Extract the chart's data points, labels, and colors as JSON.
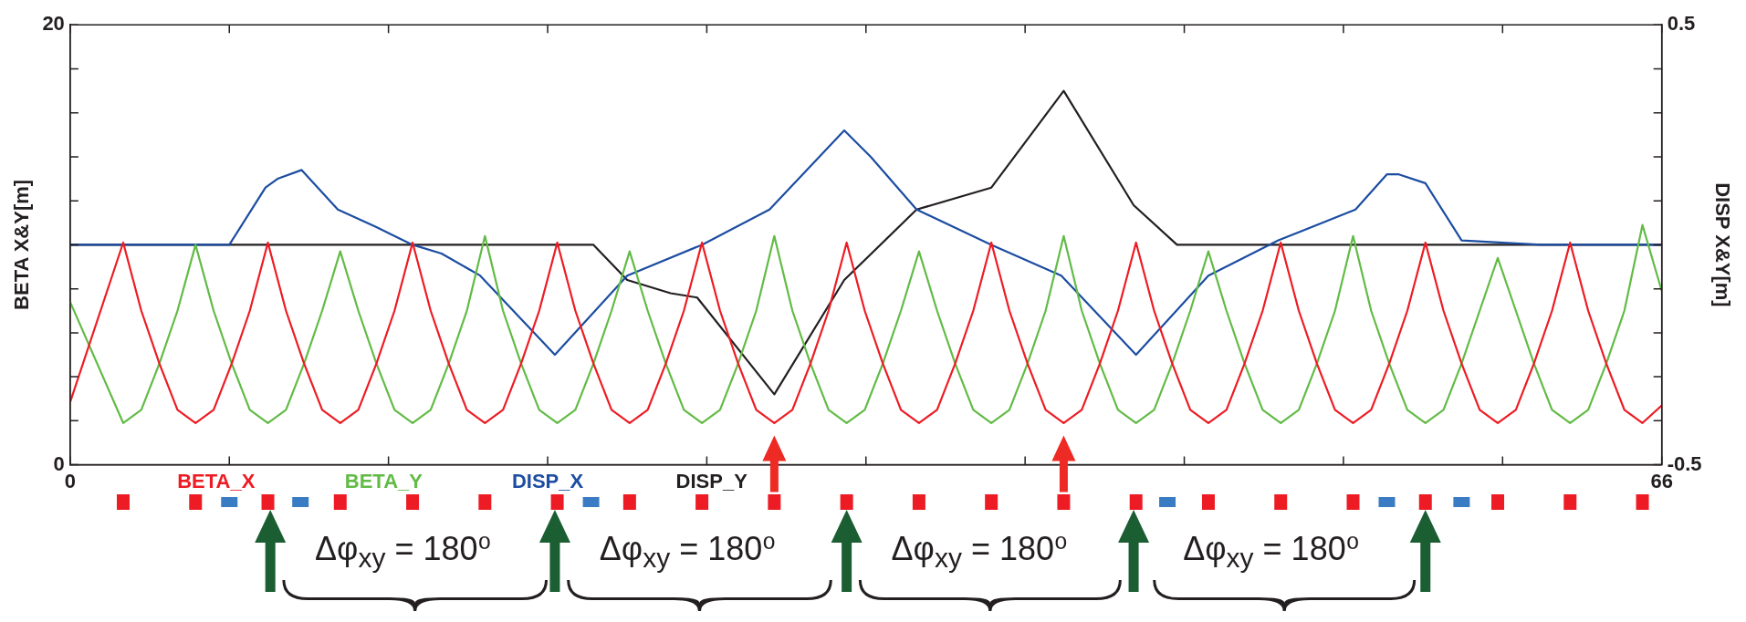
{
  "chart_data": {
    "type": "line",
    "ylabel": "BETA X&Y[m]",
    "y2label": "DISP X&Y[m]",
    "legend": "bottom",
    "xlim": [
      0,
      66
    ],
    "xticks": [
      0,
      {
        "value": 6.6,
        "label": null
      },
      {
        "value": 13.2,
        "label": null
      },
      {
        "value": 19.8,
        "label": null
      },
      {
        "value": 26.4,
        "label": null
      },
      {
        "value": 33,
        "label": null
      },
      {
        "value": 39.6,
        "label": null
      },
      {
        "value": 46.2,
        "label": null
      },
      {
        "value": 52.8,
        "label": null
      },
      {
        "value": 59.4,
        "label": null
      },
      66
    ],
    "ylim": [
      0,
      20
    ],
    "yticks": [
      0,
      {
        "value": 2,
        "label": null
      },
      {
        "value": 4,
        "label": null
      },
      {
        "value": 6,
        "label": null
      },
      {
        "value": 8,
        "label": null
      },
      {
        "value": 10,
        "label": null
      },
      {
        "value": 12,
        "label": null
      },
      {
        "value": 14,
        "label": null
      },
      {
        "value": 16,
        "label": null
      },
      {
        "value": 18,
        "label": null
      },
      20
    ],
    "y2lim": [
      -0.5,
      0.5
    ],
    "y2ticks": [
      -0.5,
      {
        "value": -0.4,
        "label": null
      },
      {
        "value": -0.3,
        "label": null
      },
      {
        "value": -0.2,
        "label": null
      },
      {
        "value": -0.1,
        "label": null
      },
      {
        "value": 0,
        "label": null
      },
      {
        "value": 0.1,
        "label": null
      },
      {
        "value": 0.2,
        "label": null
      },
      {
        "value": 0.3,
        "label": null
      },
      {
        "value": 0.4,
        "label": null
      },
      0.5
    ],
    "annotations": [
      "Δφ$_{xy}$ = 180⁰",
      "Δφ$_{xy}$ = 180⁰",
      "Δφ$_{xy}$ = 180⁰",
      "Δφ$_{xy}$ = 180⁰"
    ],
    "series": [
      {
        "name": "BETA_X",
        "color": "#ed1c24",
        "x": [
          0,
          2.2,
          2.95,
          3.7,
          4.45,
          5.2,
          5.95,
          6.7,
          7.45,
          8.2,
          8.95,
          9.7,
          10.45,
          11.2,
          11.95,
          12.7,
          13.45,
          14.2,
          14.95,
          15.7,
          16.45,
          17.2,
          17.95,
          18.7,
          19.45,
          20.2,
          20.95,
          21.7,
          22.45,
          23.2,
          23.95,
          24.7,
          25.45,
          26.2,
          26.95,
          27.7,
          28.45,
          29.2,
          29.95,
          30.7,
          31.45,
          32.2,
          32.95,
          33.7,
          34.45,
          35.2,
          35.95,
          36.7,
          37.45,
          38.2,
          38.95,
          39.7,
          40.45,
          41.2,
          41.95,
          42.7,
          43.45,
          44.2,
          44.95,
          45.7,
          46.45,
          47.2,
          47.95,
          48.7,
          49.45,
          50.2,
          50.95,
          51.7,
          52.45,
          53.2,
          53.95,
          54.7,
          55.45,
          56.2,
          56.95,
          57.7,
          58.45,
          59.2,
          59.95,
          60.7,
          61.45,
          62.2,
          62.95,
          63.7,
          64.45,
          65.2,
          66
        ],
        "values": [
          2.85,
          10.1,
          7.0,
          4.6,
          2.5,
          1.9,
          2.5,
          4.6,
          7.0,
          10.1,
          7.0,
          4.6,
          2.5,
          1.9,
          2.5,
          4.6,
          7.0,
          10.1,
          7.0,
          4.6,
          2.5,
          1.9,
          2.5,
          4.6,
          7.0,
          10.1,
          7.0,
          4.6,
          2.5,
          1.9,
          2.5,
          4.6,
          7.0,
          10.1,
          7.0,
          4.6,
          2.5,
          1.9,
          2.5,
          4.6,
          7.0,
          10.1,
          7.0,
          4.6,
          2.5,
          1.9,
          2.5,
          4.6,
          7.0,
          10.1,
          7.0,
          4.6,
          2.5,
          1.9,
          2.5,
          4.6,
          7.0,
          10.1,
          7.0,
          4.6,
          2.5,
          1.9,
          2.5,
          4.6,
          7.0,
          10.1,
          7.0,
          4.6,
          2.5,
          1.9,
          2.5,
          4.6,
          7.0,
          10.1,
          7.0,
          4.6,
          2.5,
          1.9,
          2.5,
          4.6,
          7.0,
          10.1,
          7.0,
          4.6,
          2.5,
          1.9,
          2.7
        ]
      },
      {
        "name": "BETA_Y",
        "color": "#62bb46",
        "x": [
          0,
          2.2,
          2.95,
          3.7,
          4.45,
          5.2,
          5.95,
          6.7,
          7.45,
          8.2,
          8.95,
          9.7,
          10.45,
          11.2,
          11.95,
          12.7,
          13.45,
          14.2,
          14.95,
          15.7,
          16.45,
          17.2,
          17.95,
          18.7,
          19.45,
          20.2,
          20.95,
          21.7,
          22.45,
          23.2,
          23.95,
          24.7,
          25.45,
          26.2,
          26.95,
          27.7,
          28.45,
          29.2,
          29.95,
          30.7,
          31.45,
          32.2,
          32.95,
          33.7,
          34.45,
          35.2,
          35.95,
          36.7,
          37.45,
          38.2,
          38.95,
          39.7,
          40.45,
          41.2,
          41.95,
          42.7,
          43.45,
          44.2,
          44.95,
          45.7,
          46.45,
          47.2,
          47.95,
          48.7,
          49.45,
          50.2,
          50.95,
          51.7,
          52.45,
          53.2,
          53.95,
          54.7,
          55.45,
          56.2,
          56.95,
          57.7,
          58.45,
          59.2,
          59.95,
          60.7,
          61.45,
          62.2,
          62.95,
          63.7,
          64.45,
          65.2,
          66
        ],
        "values": [
          7.4,
          1.9,
          2.5,
          4.6,
          7.0,
          10.0,
          7.0,
          4.6,
          2.5,
          1.9,
          2.5,
          4.6,
          7.0,
          9.7,
          7.0,
          4.6,
          2.5,
          1.9,
          2.5,
          4.6,
          7.0,
          10.4,
          7.0,
          4.6,
          2.5,
          1.9,
          2.5,
          4.6,
          7.0,
          9.7,
          7.0,
          4.6,
          2.5,
          1.9,
          2.5,
          4.6,
          7.0,
          10.4,
          7.0,
          4.6,
          2.5,
          1.9,
          2.5,
          4.6,
          7.0,
          9.7,
          7.0,
          4.6,
          2.5,
          1.9,
          2.5,
          4.6,
          7.0,
          10.4,
          7.0,
          4.6,
          2.5,
          1.9,
          2.5,
          4.6,
          7.0,
          9.7,
          7.0,
          4.6,
          2.5,
          1.9,
          2.5,
          4.6,
          7.0,
          10.4,
          7.0,
          4.6,
          2.5,
          1.9,
          2.5,
          4.6,
          7.0,
          9.4,
          7.0,
          4.6,
          2.5,
          1.9,
          2.5,
          4.6,
          7.0,
          10.9,
          7.9
        ]
      },
      {
        "name": "DISP_X",
        "color": "#1c4da1",
        "axis": "y2",
        "x": [
          0,
          6.3,
          6.6,
          8.1,
          8.6,
          9.6,
          11.1,
          12.7,
          14.2,
          15.4,
          17.0,
          20.1,
          23.1,
          26.2,
          29.0,
          32.1,
          33.2,
          35.1,
          38.2,
          41.1,
          44.2,
          47.2,
          50.1,
          53.3,
          54.6,
          55.1,
          56.2,
          57.7,
          61.0,
          66
        ],
        "values": [
          0,
          0,
          0,
          0.13,
          0.15,
          0.17,
          0.08,
          0.04,
          0,
          -0.02,
          -0.07,
          -0.25,
          -0.07,
          0,
          0.08,
          0.26,
          0.2,
          0.08,
          0,
          -0.07,
          -0.25,
          -0.07,
          0.01,
          0.08,
          0.16,
          0.16,
          0.14,
          0.01,
          0,
          0
        ]
      },
      {
        "name": "DISP_Y",
        "color": "#231f20",
        "axis": "y2",
        "x": [
          0,
          21.7,
          23.1,
          24.9,
          26.0,
          29.2,
          32.1,
          35.1,
          38.2,
          41.2,
          44.1,
          45.9,
          66
        ],
        "values": [
          0,
          0,
          -0.08,
          -0.11,
          -0.12,
          -0.34,
          -0.08,
          0.08,
          0.13,
          0.35,
          0.09,
          0,
          0
        ]
      }
    ]
  }
}
